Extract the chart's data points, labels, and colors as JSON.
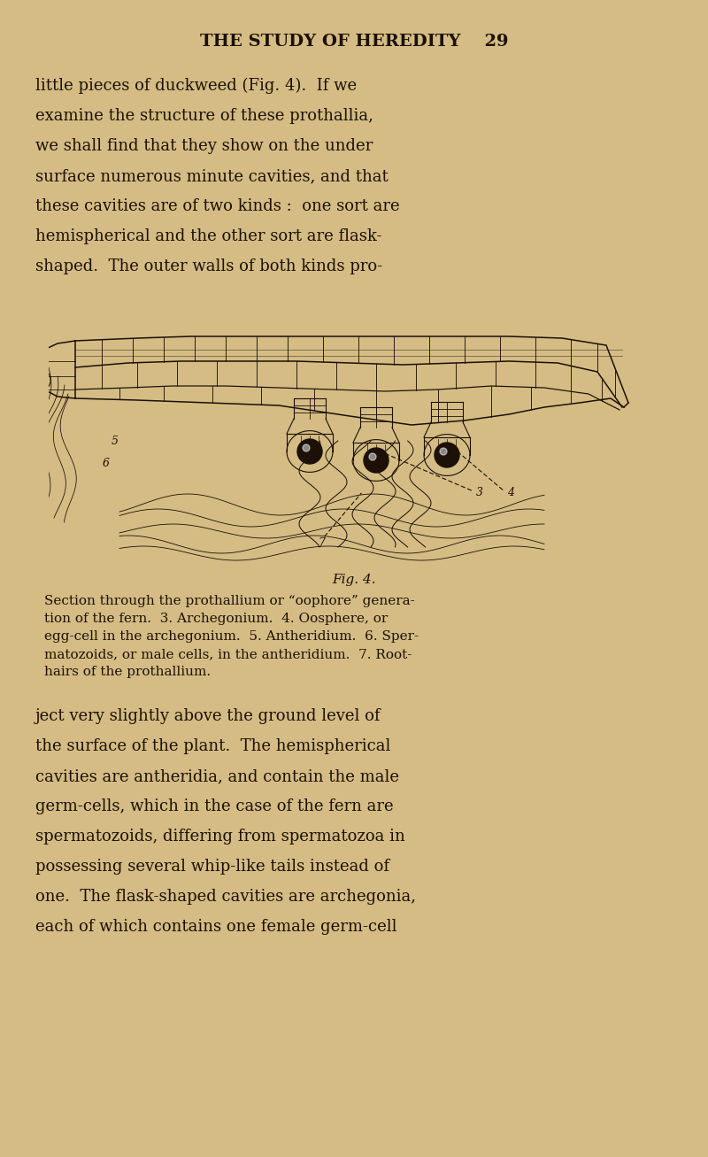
{
  "bg": "#d4bc84",
  "ink": "#1c1007",
  "title": "THE STUDY OF HEREDITY    29",
  "para1": [
    "little pieces of duckweed (Fig. 4).  If we",
    "examine the structure of these prothallia,",
    "we shall find that they show on the under",
    "surface numerous minute cavities, and that",
    "these cavities are of two kinds :  one sort are",
    "hemispherical and the other sort are flask-",
    "shaped.  The outer walls of both kinds pro-"
  ],
  "fig_label": "Fig. 4.",
  "caption": [
    "Section through the prothallium or “oophore” genera-",
    "tion of the fern.  3. Archegonium.  4. Oosphere, or",
    "egg-cell in the archegonium.  5. Antheridium.  6. Sper-",
    "matozoids, or male cells, in the antheridium.  7. Root-",
    "hairs of the prothallium."
  ],
  "para2": [
    "ject very slightly above the ground level of",
    "the surface of the plant.  The hemispherical",
    "cavities are antheridia, and contain the male",
    "germ-cells, which in the case of the fern are",
    "spermatozoids, differing from spermatozoa in",
    "possessing several whip-like tails instead of",
    "one.  The flask-shaped cavities are archegonia,",
    "each of which contains one female germ-cell"
  ],
  "fs_title": 14,
  "fs_body": 13,
  "fs_caption": 11,
  "fs_fig": 11
}
